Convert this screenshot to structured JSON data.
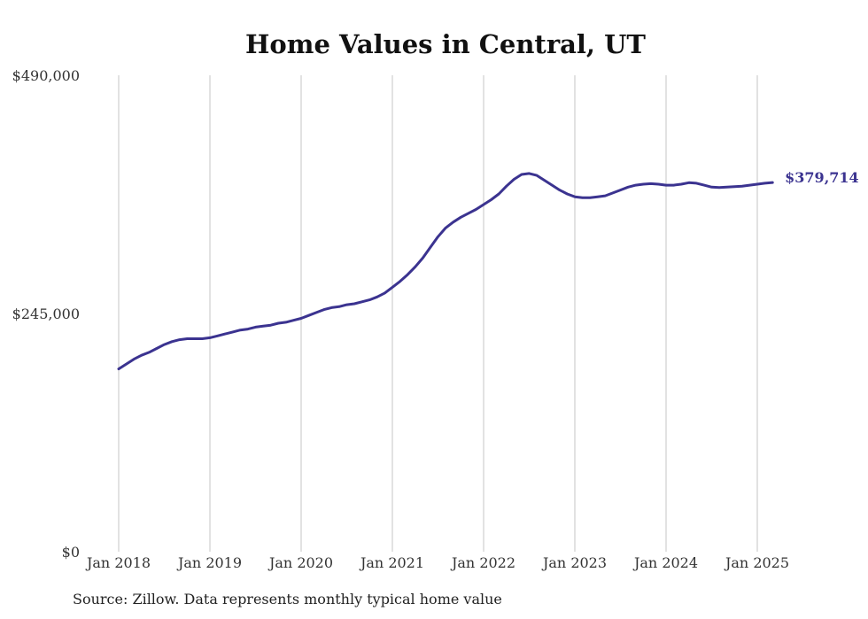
{
  "chart_data": {
    "type": "line",
    "title": "Home Values in Central, UT",
    "xlabel": "",
    "ylabel": "",
    "ylim": [
      0,
      490000
    ],
    "y_ticks": [
      {
        "value": 0,
        "label": "$0"
      },
      {
        "value": 245000,
        "label": "$245,000"
      },
      {
        "value": 490000,
        "label": "$490,000"
      }
    ],
    "x_ticks": [
      {
        "year": 2018,
        "label": "Jan 2018"
      },
      {
        "year": 2019,
        "label": "Jan 2019"
      },
      {
        "year": 2020,
        "label": "Jan 2020"
      },
      {
        "year": 2021,
        "label": "Jan 2021"
      },
      {
        "year": 2022,
        "label": "Jan 2022"
      },
      {
        "year": 2023,
        "label": "Jan 2023"
      },
      {
        "year": 2024,
        "label": "Jan 2024"
      },
      {
        "year": 2025,
        "label": "Jan 2025"
      }
    ],
    "grid": {
      "vertical": true,
      "horizontal": false
    },
    "series": [
      {
        "color": "#3b3390",
        "points": [
          [
            "2018-01",
            188000
          ],
          [
            "2018-02",
            193000
          ],
          [
            "2018-03",
            198000
          ],
          [
            "2018-04",
            202000
          ],
          [
            "2018-05",
            205000
          ],
          [
            "2018-06",
            209000
          ],
          [
            "2018-07",
            213000
          ],
          [
            "2018-08",
            216000
          ],
          [
            "2018-09",
            218000
          ],
          [
            "2018-10",
            219000
          ],
          [
            "2018-11",
            219000
          ],
          [
            "2018-12",
            219000
          ],
          [
            "2019-01",
            220000
          ],
          [
            "2019-02",
            222000
          ],
          [
            "2019-03",
            224000
          ],
          [
            "2019-04",
            226000
          ],
          [
            "2019-05",
            228000
          ],
          [
            "2019-06",
            229000
          ],
          [
            "2019-07",
            231000
          ],
          [
            "2019-08",
            232000
          ],
          [
            "2019-09",
            233000
          ],
          [
            "2019-10",
            235000
          ],
          [
            "2019-11",
            236000
          ],
          [
            "2019-12",
            238000
          ],
          [
            "2020-01",
            240000
          ],
          [
            "2020-02",
            243000
          ],
          [
            "2020-03",
            246000
          ],
          [
            "2020-04",
            249000
          ],
          [
            "2020-05",
            251000
          ],
          [
            "2020-06",
            252000
          ],
          [
            "2020-07",
            254000
          ],
          [
            "2020-08",
            255000
          ],
          [
            "2020-09",
            257000
          ],
          [
            "2020-10",
            259000
          ],
          [
            "2020-11",
            262000
          ],
          [
            "2020-12",
            266000
          ],
          [
            "2021-01",
            272000
          ],
          [
            "2021-02",
            278000
          ],
          [
            "2021-03",
            285000
          ],
          [
            "2021-04",
            293000
          ],
          [
            "2021-05",
            302000
          ],
          [
            "2021-06",
            313000
          ],
          [
            "2021-07",
            324000
          ],
          [
            "2021-08",
            333000
          ],
          [
            "2021-09",
            339000
          ],
          [
            "2021-10",
            344000
          ],
          [
            "2021-11",
            348000
          ],
          [
            "2021-12",
            352000
          ],
          [
            "2022-01",
            357000
          ],
          [
            "2022-02",
            362000
          ],
          [
            "2022-03",
            368000
          ],
          [
            "2022-04",
            376000
          ],
          [
            "2022-05",
            383000
          ],
          [
            "2022-06",
            388000
          ],
          [
            "2022-07",
            389000
          ],
          [
            "2022-08",
            387000
          ],
          [
            "2022-09",
            382000
          ],
          [
            "2022-10",
            377000
          ],
          [
            "2022-11",
            372000
          ],
          [
            "2022-12",
            368000
          ],
          [
            "2023-01",
            365000
          ],
          [
            "2023-02",
            364000
          ],
          [
            "2023-03",
            364000
          ],
          [
            "2023-04",
            365000
          ],
          [
            "2023-05",
            366000
          ],
          [
            "2023-06",
            369000
          ],
          [
            "2023-07",
            372000
          ],
          [
            "2023-08",
            375000
          ],
          [
            "2023-09",
            377000
          ],
          [
            "2023-10",
            378000
          ],
          [
            "2023-11",
            378500
          ],
          [
            "2023-12",
            378000
          ],
          [
            "2024-01",
            377000
          ],
          [
            "2024-02",
            377000
          ],
          [
            "2024-03",
            378000
          ],
          [
            "2024-04",
            379500
          ],
          [
            "2024-05",
            379000
          ],
          [
            "2024-06",
            377000
          ],
          [
            "2024-07",
            375000
          ],
          [
            "2024-08",
            374500
          ],
          [
            "2024-09",
            375000
          ],
          [
            "2024-10",
            375500
          ],
          [
            "2024-11",
            376000
          ],
          [
            "2024-12",
            377000
          ],
          [
            "2025-01",
            378000
          ],
          [
            "2025-02",
            379000
          ],
          [
            "2025-03",
            379714
          ]
        ]
      }
    ],
    "end_label": "$379,714",
    "source": "Source: Zillow. Data represents monthly typical home value"
  }
}
